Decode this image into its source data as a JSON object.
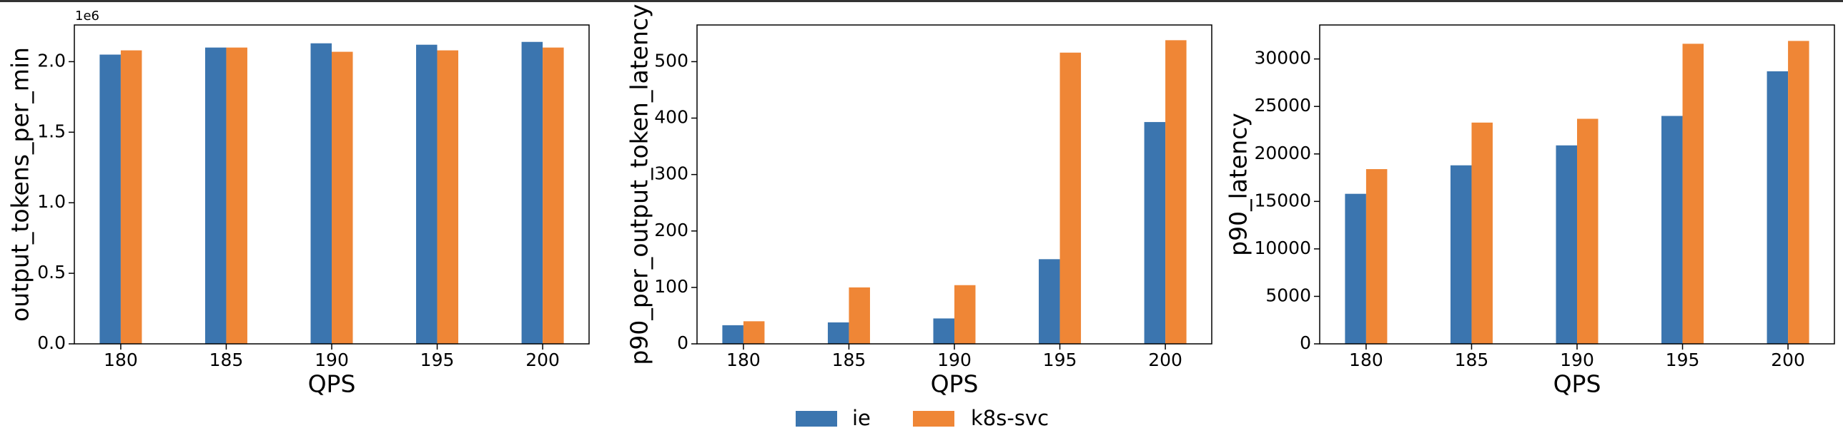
{
  "chart_data": [
    {
      "type": "bar",
      "ylabel": "output_tokens_per_min",
      "xlabel": "QPS",
      "offset_label": "1e6",
      "x": [
        180,
        185,
        190,
        195,
        200
      ],
      "xlim": [
        177.8,
        202.2
      ],
      "xticks": [
        180,
        185,
        190,
        195,
        200
      ],
      "ylim": [
        0,
        2.26
      ],
      "yticks": [
        {
          "value": 0,
          "label": "0.0"
        },
        0.5,
        {
          "value": 1,
          "label": "1.0"
        },
        1.5,
        {
          "value": 2,
          "label": "2.0"
        }
      ],
      "series": [
        {
          "name": "ie",
          "color": "#3b75af",
          "values": [
            2.05,
            2.1,
            2.13,
            2.12,
            2.14
          ]
        },
        {
          "name": "k8s-svc",
          "color": "#ef8636",
          "values": [
            2.08,
            2.1,
            2.07,
            2.08,
            2.1
          ]
        }
      ]
    },
    {
      "type": "bar",
      "ylabel": "p90_per_output_token_latency",
      "xlabel": "QPS",
      "x": [
        180,
        185,
        190,
        195,
        200
      ],
      "xlim": [
        177.8,
        202.2
      ],
      "xticks": [
        180,
        185,
        190,
        195,
        200
      ],
      "ylim": [
        0,
        565
      ],
      "yticks": [
        0,
        100,
        200,
        300,
        400,
        500
      ],
      "series": [
        {
          "name": "ie",
          "color": "#3b75af",
          "values": [
            33,
            38,
            45,
            150,
            393
          ]
        },
        {
          "name": "k8s-svc",
          "color": "#ef8636",
          "values": [
            40,
            100,
            104,
            516,
            538
          ]
        }
      ]
    },
    {
      "type": "bar",
      "ylabel": "p90_latency",
      "xlabel": "QPS",
      "x": [
        180,
        185,
        190,
        195,
        200
      ],
      "xlim": [
        177.8,
        202.2
      ],
      "xticks": [
        180,
        185,
        190,
        195,
        200
      ],
      "ylim": [
        0,
        33580
      ],
      "yticks": [
        0,
        5000,
        10000,
        15000,
        20000,
        25000,
        30000
      ],
      "series": [
        {
          "name": "ie",
          "color": "#3b75af",
          "values": [
            15800,
            18800,
            20900,
            24000,
            28700
          ]
        },
        {
          "name": "k8s-svc",
          "color": "#ef8636",
          "values": [
            18400,
            23300,
            23700,
            31600,
            31900
          ]
        }
      ]
    }
  ]
}
